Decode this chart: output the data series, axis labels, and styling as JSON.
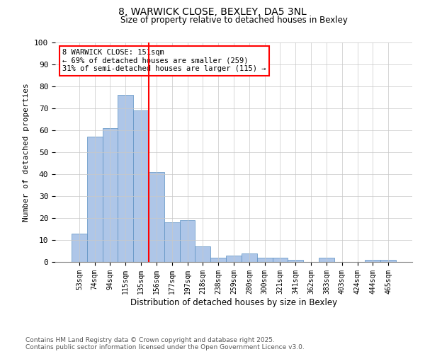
{
  "title": "8, WARWICK CLOSE, BEXLEY, DA5 3NL",
  "subtitle": "Size of property relative to detached houses in Bexley",
  "xlabel": "Distribution of detached houses by size in Bexley",
  "ylabel": "Number of detached properties",
  "categories": [
    "53sqm",
    "74sqm",
    "94sqm",
    "115sqm",
    "135sqm",
    "156sqm",
    "177sqm",
    "197sqm",
    "218sqm",
    "238sqm",
    "259sqm",
    "280sqm",
    "300sqm",
    "321sqm",
    "341sqm",
    "362sqm",
    "383sqm",
    "403sqm",
    "424sqm",
    "444sqm",
    "465sqm"
  ],
  "values": [
    13,
    57,
    61,
    76,
    69,
    41,
    18,
    19,
    7,
    2,
    3,
    4,
    2,
    2,
    1,
    0,
    2,
    0,
    0,
    1,
    1
  ],
  "bar_color": "#aec6e8",
  "bar_edge_color": "#5a8fc2",
  "vline_color": "red",
  "vline_x_index": 4.5,
  "annotation_text": "8 WARWICK CLOSE: 151sqm\n← 69% of detached houses are smaller (259)\n31% of semi-detached houses are larger (115) →",
  "annotation_box_color": "white",
  "annotation_box_edge_color": "red",
  "ylim": [
    0,
    100
  ],
  "yticks": [
    0,
    10,
    20,
    30,
    40,
    50,
    60,
    70,
    80,
    90,
    100
  ],
  "footnote": "Contains HM Land Registry data © Crown copyright and database right 2025.\nContains public sector information licensed under the Open Government Licence v3.0.",
  "background_color": "white",
  "grid_color": "#c8c8c8"
}
